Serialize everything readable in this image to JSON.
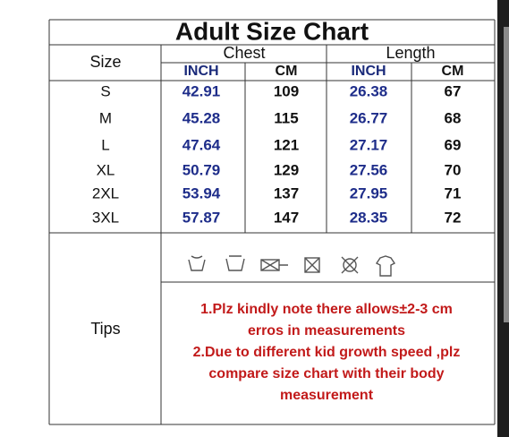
{
  "title": "Adult Size Chart",
  "header": {
    "size": "Size",
    "chest": "Chest",
    "length": "Length",
    "units": [
      "INCH",
      "CM",
      "INCH",
      "CM"
    ]
  },
  "table": {
    "rows": [
      [
        "S",
        42.91,
        109,
        26.38,
        67
      ],
      [
        "M",
        45.28,
        115,
        26.77,
        68
      ],
      [
        "L",
        47.64,
        121,
        27.17,
        69
      ],
      [
        "XL",
        50.79,
        129,
        27.56,
        70
      ],
      [
        "2XL",
        53.94,
        137,
        27.95,
        71
      ],
      [
        "3XL",
        57.87,
        147,
        28.35,
        72
      ]
    ]
  },
  "tips": {
    "label": "Tips",
    "lines": [
      "1.Plz kindly note there allows±2-3 cm",
      "erros in measurements",
      "2.Due to different kid growth speed ,plz",
      "compare size chart with their body",
      "measurement"
    ]
  }
}
